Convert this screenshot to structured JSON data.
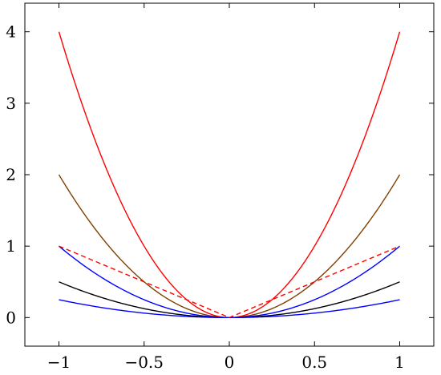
{
  "chart_data": {
    "type": "line",
    "title": "",
    "xlabel": "",
    "ylabel": "",
    "xlim": [
      -1.2,
      1.2
    ],
    "ylim": [
      -0.4,
      4.4
    ],
    "grid": false,
    "x_ticks": [
      -1,
      -0.5,
      0,
      0.5,
      1
    ],
    "x_tick_labels": [
      "−1",
      "−0.5",
      "0",
      "0.5",
      "1"
    ],
    "y_ticks": [
      0,
      1,
      2,
      3,
      4
    ],
    "y_tick_labels": [
      "0",
      "1",
      "2",
      "3",
      "4"
    ],
    "series": [
      {
        "color": "#ff0000",
        "dash": false,
        "x": [
          -1,
          -0.5,
          0,
          0.5,
          1
        ],
        "y": [
          4,
          1,
          0,
          1,
          4
        ]
      },
      {
        "color": "#7f3f00",
        "dash": false,
        "x": [
          -1,
          -0.5,
          0,
          0.5,
          1
        ],
        "y": [
          2,
          0.5,
          0,
          0.5,
          2
        ]
      },
      {
        "color": "#0000ff",
        "dash": false,
        "x": [
          -1,
          -0.5,
          0,
          0.5,
          1
        ],
        "y": [
          1,
          0.25,
          0,
          0.25,
          1
        ]
      },
      {
        "color": "#000000",
        "dash": false,
        "x": [
          -1,
          -0.5,
          0,
          0.5,
          1
        ],
        "y": [
          0.5,
          0.125,
          0,
          0.125,
          0.5
        ]
      },
      {
        "color": "#0000ff",
        "dash": false,
        "x": [
          -1,
          -0.5,
          0,
          0.5,
          1
        ],
        "y": [
          0.25,
          0.0625,
          0,
          0.0625,
          0.25
        ]
      },
      {
        "color": "#ff0000",
        "dash": true,
        "x": [
          -1,
          0,
          1
        ],
        "y": [
          1,
          0,
          1
        ]
      }
    ]
  }
}
